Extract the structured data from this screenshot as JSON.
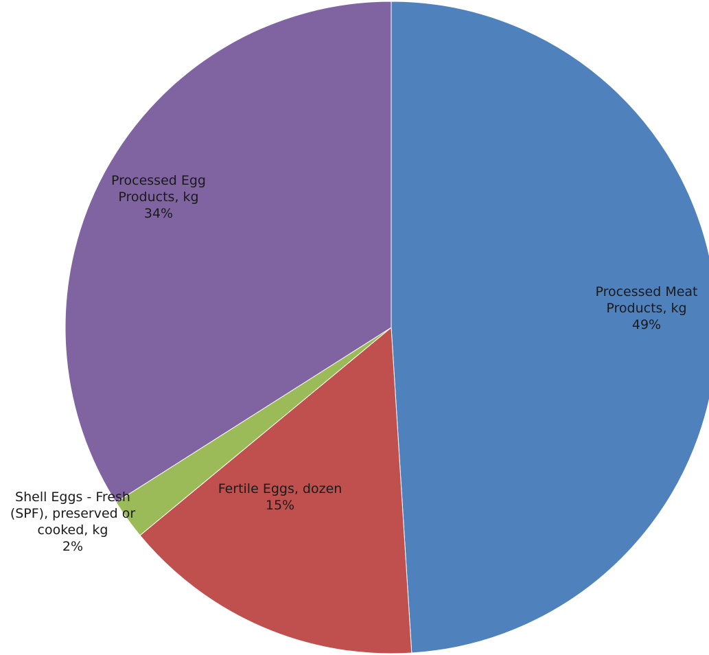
{
  "chart_data": {
    "type": "pie",
    "title": "",
    "start_angle_deg": 0,
    "direction": "clockwise",
    "slices": [
      {
        "name": "Processed Meat Products, kg",
        "label_lines": [
          "Processed Meat",
          "Products, kg",
          "49%"
        ],
        "value": 49,
        "color": "#4f81bd"
      },
      {
        "name": "Fertile Eggs, dozen",
        "label_lines": [
          "Fertile Eggs, dozen",
          "15%"
        ],
        "value": 15,
        "color": "#c0504d"
      },
      {
        "name": "Shell Eggs - Fresh (SPF), preserved or cooked, kg",
        "label_lines": [
          "Shell Eggs - Fresh",
          "(SPF), preserved or",
          "cooked, kg",
          "2%"
        ],
        "value": 2,
        "color": "#9bbb59"
      },
      {
        "name": "Processed Egg Products, kg",
        "label_lines": [
          "Processed Egg",
          "Products, kg",
          "34%"
        ],
        "value": 34,
        "color": "#8064a2"
      }
    ],
    "legend": "none"
  }
}
